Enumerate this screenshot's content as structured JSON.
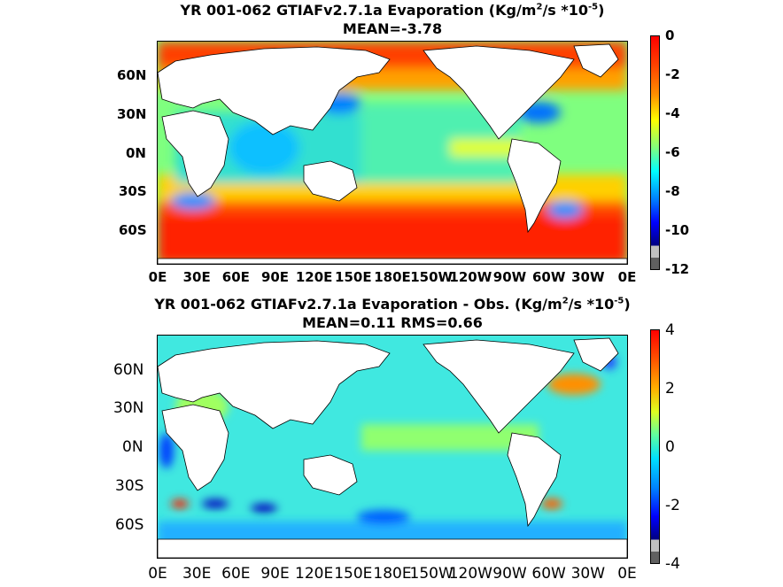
{
  "panel1": {
    "title_prefix": "YR 001-062 GTIAFv2.7.1a  Evaporation (Kg/m",
    "title_sup1": "2",
    "title_mid": "/s *10",
    "title_sup2": "-5",
    "title_suffix": ")",
    "subtitle": "MEAN=-3.78",
    "lat_labels": [
      "60N",
      "30N",
      "0N",
      "30S",
      "60S"
    ],
    "lon_labels": [
      "0E",
      "30E",
      "60E",
      "90E",
      "120E",
      "150E",
      "180E",
      "150W",
      "120W",
      "90W",
      "60W",
      "30W",
      "0E"
    ],
    "colorbar_ticks": [
      "0",
      "-2",
      "-4",
      "-6",
      "-8",
      "-10",
      "-12"
    ],
    "colorbar_range": [
      -12,
      0
    ]
  },
  "panel2": {
    "title_prefix": "YR 001-062 GTIAFv2.7.1a  Evaporation - Obs. (Kg/m",
    "title_sup1": "2",
    "title_mid": "/s *10",
    "title_sup2": "-5",
    "title_suffix": ")",
    "subtitle": "MEAN=0.11   RMS=0.66",
    "lat_labels": [
      "60N",
      "30N",
      "0N",
      "30S",
      "60S"
    ],
    "lon_labels": [
      "0E",
      "30E",
      "60E",
      "90E",
      "120E",
      "150E",
      "180E",
      "150W",
      "120W",
      "90W",
      "60W",
      "30W",
      "0E"
    ],
    "colorbar_ticks": [
      "4",
      "2",
      "0",
      "-2",
      "-4"
    ],
    "colorbar_range": [
      -4,
      4
    ]
  },
  "colors": {
    "land": "#ffffff",
    "jet": [
      "#800000",
      "#ff0000",
      "#ff8000",
      "#ffff00",
      "#80ff80",
      "#00ffff",
      "#0080ff",
      "#0000ff",
      "#000080"
    ],
    "extra_low": [
      "#c0c0c0",
      "#606060"
    ]
  }
}
